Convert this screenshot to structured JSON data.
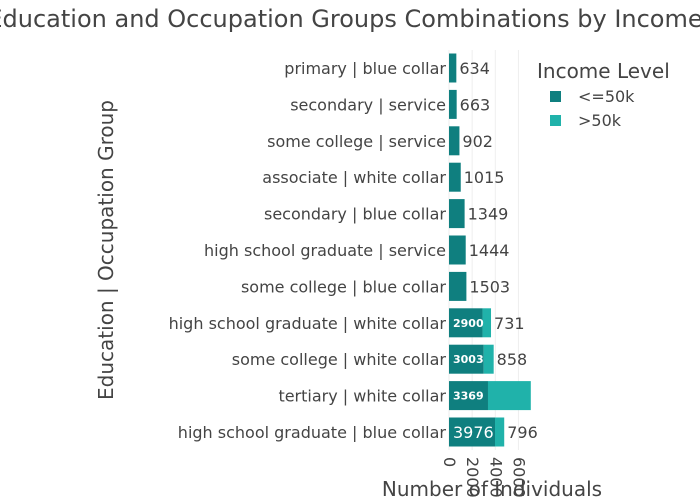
{
  "chart_data": {
    "type": "bar",
    "orientation": "horizontal",
    "barmode": "stack",
    "title": "Education and Occupation Groups Combinations by Income",
    "xlabel": "Number of Individuals",
    "ylabel": "Education | Occupation Group",
    "xlim": [
      0,
      7000
    ],
    "xticks": [
      0,
      2000,
      4000,
      6000
    ],
    "legend_title": "Income Level",
    "legend_position": "top-right",
    "categories": [
      "primary | blue collar",
      "secondary | service",
      "some college | service",
      "associate | white collar",
      "secondary | blue collar",
      "high school graduate | service",
      "some college | blue collar",
      "high school graduate | white collar",
      "some college | white collar",
      "tertiary | white collar",
      "high school graduate | blue collar"
    ],
    "series": [
      {
        "name": "<=50k",
        "color": "#0f7f7f",
        "values": [
          634,
          663,
          902,
          1015,
          1349,
          1444,
          1503,
          2900,
          3003,
          3369,
          3976
        ]
      },
      {
        "name": ">50k",
        "color": "#20b2aa",
        "values": [
          0,
          0,
          0,
          0,
          0,
          0,
          0,
          731,
          858,
          3700,
          796
        ]
      }
    ],
    "data_labels": {
      "inside": [
        "",
        "",
        "",
        "",
        "",
        "",
        "",
        "2900",
        "3003",
        "3369",
        "3976"
      ],
      "outside": [
        "634",
        "663",
        "902",
        "1015",
        "1349",
        "1444",
        "1503",
        "731",
        "858",
        "",
        "796"
      ]
    }
  }
}
